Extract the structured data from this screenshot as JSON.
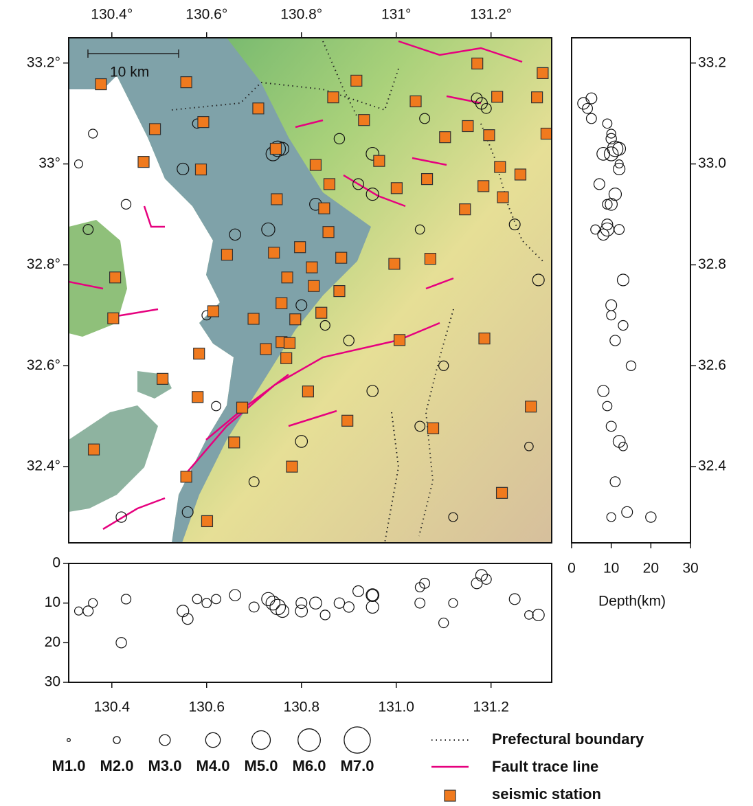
{
  "map": {
    "lon_ticks": [
      {
        "value": 130.4,
        "label": "130.4°"
      },
      {
        "value": 130.6,
        "label": "130.6°"
      },
      {
        "value": 130.8,
        "label": "130.8°"
      },
      {
        "value": 131,
        "label": "131°"
      },
      {
        "value": 131.2,
        "label": "131.2°"
      }
    ],
    "lat_ticks": [
      {
        "value": 33.2,
        "label": "33.2°"
      },
      {
        "value": 33,
        "label": "33°"
      },
      {
        "value": 32.8,
        "label": "32.8°"
      },
      {
        "value": 32.6,
        "label": "32.6°"
      },
      {
        "value": 32.4,
        "label": "32.4°"
      }
    ],
    "xlim": [
      130.309,
      131.328
    ],
    "ylim": [
      32.249,
      33.25
    ],
    "scale_bar": "10 km",
    "stations": [
      [
        130.377,
        33.158
      ],
      [
        130.557,
        33.162
      ],
      [
        130.916,
        33.165
      ],
      [
        130.867,
        33.132
      ],
      [
        130.709,
        33.11
      ],
      [
        131.041,
        33.124
      ],
      [
        131.171,
        33.199
      ],
      [
        131.213,
        33.133
      ],
      [
        131.297,
        33.132
      ],
      [
        131.309,
        33.18
      ],
      [
        130.491,
        33.069
      ],
      [
        130.593,
        33.083
      ],
      [
        130.932,
        33.087
      ],
      [
        131.151,
        33.075
      ],
      [
        131.103,
        33.053
      ],
      [
        131.196,
        33.057
      ],
      [
        131.317,
        33.06
      ],
      [
        130.746,
        33.03
      ],
      [
        130.467,
        33.004
      ],
      [
        130.588,
        32.989
      ],
      [
        130.83,
        32.998
      ],
      [
        130.964,
        33.006
      ],
      [
        131.219,
        32.994
      ],
      [
        131.262,
        32.979
      ],
      [
        130.859,
        32.96
      ],
      [
        131.001,
        32.952
      ],
      [
        131.065,
        32.97
      ],
      [
        131.184,
        32.956
      ],
      [
        130.748,
        32.93
      ],
      [
        130.848,
        32.912
      ],
      [
        131.225,
        32.934
      ],
      [
        131.145,
        32.91
      ],
      [
        130.857,
        32.865
      ],
      [
        130.797,
        32.835
      ],
      [
        130.643,
        32.82
      ],
      [
        130.742,
        32.824
      ],
      [
        130.884,
        32.814
      ],
      [
        130.996,
        32.802
      ],
      [
        131.072,
        32.812
      ],
      [
        130.407,
        32.775
      ],
      [
        130.77,
        32.775
      ],
      [
        130.822,
        32.795
      ],
      [
        130.826,
        32.758
      ],
      [
        130.88,
        32.748
      ],
      [
        130.758,
        32.724
      ],
      [
        130.787,
        32.692
      ],
      [
        130.614,
        32.708
      ],
      [
        130.842,
        32.705
      ],
      [
        130.699,
        32.693
      ],
      [
        130.403,
        32.694
      ],
      [
        130.758,
        32.647
      ],
      [
        130.725,
        32.633
      ],
      [
        130.775,
        32.645
      ],
      [
        130.768,
        32.615
      ],
      [
        131.007,
        32.651
      ],
      [
        131.186,
        32.654
      ],
      [
        130.584,
        32.624
      ],
      [
        130.507,
        32.574
      ],
      [
        130.814,
        32.549
      ],
      [
        130.581,
        32.538
      ],
      [
        130.675,
        32.517
      ],
      [
        131.284,
        32.519
      ],
      [
        130.897,
        32.491
      ],
      [
        131.078,
        32.476
      ],
      [
        130.658,
        32.448
      ],
      [
        130.362,
        32.434
      ],
      [
        130.78,
        32.4
      ],
      [
        130.557,
        32.38
      ],
      [
        131.223,
        32.348
      ],
      [
        130.601,
        32.292
      ]
    ],
    "quakes": [
      [
        130.75,
        33.03,
        11,
        4.2
      ],
      [
        130.74,
        33.02,
        10,
        3.8
      ],
      [
        130.76,
        33.03,
        12,
        3.5
      ],
      [
        131.18,
        33.12,
        3,
        3.2
      ],
      [
        131.19,
        33.11,
        4,
        2.8
      ],
      [
        131.17,
        33.13,
        5,
        3.0
      ],
      [
        130.66,
        32.86,
        8,
        3.1
      ],
      [
        130.73,
        32.87,
        9,
        3.6
      ],
      [
        130.83,
        32.92,
        10,
        3.3
      ],
      [
        130.92,
        32.96,
        7,
        3.0
      ],
      [
        130.95,
        32.94,
        11,
        3.4
      ],
      [
        130.55,
        32.99,
        12,
        3.2
      ],
      [
        130.58,
        33.08,
        9,
        2.6
      ],
      [
        130.36,
        33.06,
        10,
        2.5
      ],
      [
        130.33,
        33.0,
        12,
        2.3
      ],
      [
        130.8,
        32.72,
        10,
        3.0
      ],
      [
        130.85,
        32.68,
        13,
        2.7
      ],
      [
        130.9,
        32.65,
        11,
        2.9
      ],
      [
        130.95,
        32.55,
        8,
        3.1
      ],
      [
        131.05,
        32.48,
        10,
        2.8
      ],
      [
        130.62,
        32.52,
        9,
        2.6
      ],
      [
        130.56,
        32.31,
        14,
        3.0
      ],
      [
        130.8,
        32.45,
        12,
        3.3
      ],
      [
        131.3,
        32.77,
        13,
        3.2
      ],
      [
        131.25,
        32.88,
        9,
        3.0
      ],
      [
        131.05,
        32.87,
        6,
        2.6
      ],
      [
        131.28,
        32.44,
        13,
        2.4
      ],
      [
        130.7,
        32.37,
        11,
        2.8
      ],
      [
        131.12,
        32.3,
        10,
        2.5
      ],
      [
        130.43,
        32.92,
        9,
        2.7
      ],
      [
        130.35,
        32.87,
        12,
        2.8
      ],
      [
        130.6,
        32.7,
        10,
        2.6
      ],
      [
        130.95,
        33.02,
        8,
        3.5
      ],
      [
        131.06,
        33.09,
        5,
        2.8
      ],
      [
        130.88,
        33.05,
        10,
        2.9
      ],
      [
        130.42,
        32.3,
        20,
        2.9
      ],
      [
        131.1,
        32.6,
        15,
        2.7
      ]
    ]
  },
  "depth_section_lat": {
    "lat_ticks": [
      33.2,
      {
        "value": 33,
        "label": "33.0"
      },
      32.8,
      32.6,
      32.4
    ],
    "depth_ticks": [
      0,
      10,
      20,
      30
    ],
    "xlim": [
      0,
      30
    ],
    "xlabel": "Depth(km)"
  },
  "depth_section_lon": {
    "lon_ticks": [
      130.4,
      130.6,
      130.8,
      {
        "value": 131,
        "label": "131.0"
      },
      131.2
    ],
    "depth_ticks": [
      0,
      10,
      20,
      30
    ],
    "ylim": [
      0,
      30
    ]
  },
  "legend": {
    "magnitudes": [
      {
        "value": 1,
        "label": "M1.0"
      },
      {
        "value": 2,
        "label": "M2.0"
      },
      {
        "value": 3,
        "label": "M3.0"
      },
      {
        "value": 4,
        "label": "M4.0"
      },
      {
        "value": 5,
        "label": "M5.0"
      },
      {
        "value": 6,
        "label": "M6.0"
      },
      {
        "value": 7,
        "label": "M7.0"
      }
    ],
    "items": [
      "Prefectural boundary",
      "Fault trace line",
      "seismic station"
    ]
  }
}
